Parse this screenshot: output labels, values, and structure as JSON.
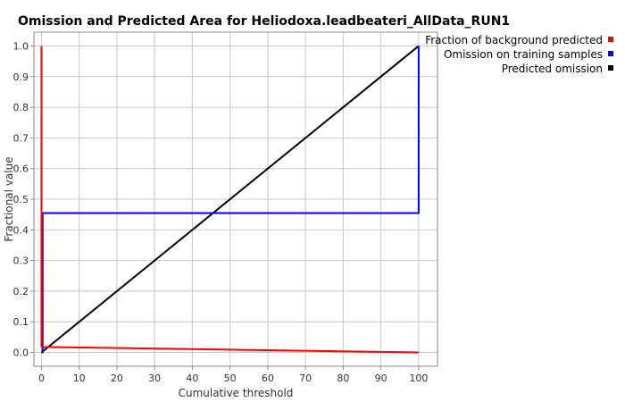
{
  "chart_data": {
    "type": "line",
    "title": "Omission and Predicted Area for Heliodoxa.leadbeateri_AllData_RUN1",
    "xlabel": "Cumulative threshold",
    "ylabel": "Fractional value",
    "xlim": [
      -2,
      105
    ],
    "ylim": [
      -0.045,
      1.045
    ],
    "xticks": [
      0,
      10,
      20,
      30,
      40,
      50,
      60,
      70,
      80,
      90,
      100
    ],
    "yticks": [
      0.0,
      0.1,
      0.2,
      0.3,
      0.4,
      0.5,
      0.6,
      0.7,
      0.8,
      0.9,
      1.0
    ],
    "xtick_labels": [
      "0",
      "10",
      "20",
      "30",
      "40",
      "50",
      "60",
      "70",
      "80",
      "90",
      "100"
    ],
    "ytick_labels": [
      "0.0",
      "0.1",
      "0.2",
      "0.3",
      "0.4",
      "0.5",
      "0.6",
      "0.7",
      "0.8",
      "0.9",
      "1.0"
    ],
    "grid": true,
    "legend_position": "top-right (outside plot)",
    "series": [
      {
        "name": "Fraction of background predicted",
        "color": "#ff0000",
        "x": [
          0,
          0,
          0.3,
          100
        ],
        "y": [
          1.0,
          0.02,
          0.018,
          0.0
        ]
      },
      {
        "name": "Omission on training samples",
        "color": "#0000ff",
        "x": [
          0,
          0.3,
          0.3,
          100,
          100
        ],
        "y": [
          0.0,
          0.0,
          0.455,
          0.455,
          1.0
        ]
      },
      {
        "name": "Predicted omission",
        "color": "#000000",
        "x": [
          0,
          100
        ],
        "y": [
          0.0,
          1.0
        ]
      }
    ]
  }
}
